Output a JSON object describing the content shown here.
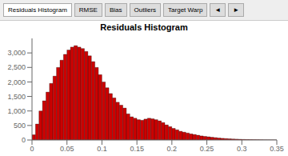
{
  "chart_data": {
    "type": "histogram",
    "title": "Residuals Histogram",
    "annotations": [
      "Residuals Histogram",
      "RMSE",
      "Bias",
      "Outliers",
      "Target Warp",
      "◄",
      "►"
    ],
    "bins": [
      0,
      0.005,
      0.01,
      0.015,
      0.02,
      0.025,
      0.03,
      0.035,
      0.04,
      0.045,
      0.05,
      0.055,
      0.06,
      0.065,
      0.07,
      0.075,
      0.08,
      0.085,
      0.09,
      0.095,
      0.1,
      0.105,
      0.11,
      0.115,
      0.12,
      0.125,
      0.13,
      0.135,
      0.14,
      0.145,
      0.15,
      0.155,
      0.16,
      0.165,
      0.17,
      0.175,
      0.18,
      0.185,
      0.19,
      0.195,
      0.2,
      0.205,
      0.21,
      0.215,
      0.22,
      0.225,
      0.23,
      0.235,
      0.24,
      0.245,
      0.25,
      0.255,
      0.26,
      0.265,
      0.27,
      0.275,
      0.28,
      0.285,
      0.29,
      0.295,
      0.3,
      0.305,
      0.31,
      0.315,
      0.32,
      0.325,
      0.33,
      0.335,
      0.34,
      0.345,
      0.35
    ],
    "values": [
      180,
      550,
      1000,
      1350,
      1650,
      1950,
      2200,
      2500,
      2750,
      2950,
      3100,
      3200,
      3250,
      3200,
      3150,
      3050,
      2900,
      2700,
      2500,
      2250,
      2000,
      1800,
      1600,
      1450,
      1300,
      1200,
      1100,
      900,
      800,
      750,
      700,
      680,
      720,
      750,
      730,
      700,
      660,
      600,
      520,
      460,
      400,
      350,
      300,
      270,
      240,
      210,
      190,
      165,
      140,
      125,
      110,
      95,
      82,
      68,
      58,
      50,
      42,
      35,
      30,
      25,
      20,
      17,
      14,
      12,
      10,
      8,
      6,
      5,
      4,
      3
    ],
    "color": "#cc0000",
    "xlim": [
      0,
      0.35
    ],
    "ylim": [
      0,
      3500
    ],
    "xticks": [
      0,
      0.05,
      0.1,
      0.15,
      0.2,
      0.25,
      0.3,
      0.35
    ],
    "yticks": [
      0,
      500,
      {
        "value": 1000,
        "label": "1,000"
      },
      {
        "value": 1500,
        "label": "1,500"
      },
      {
        "value": 2000,
        "label": "2,000"
      },
      {
        "value": 2500,
        "label": "2,500"
      },
      {
        "value": 3000,
        "label": "3,000"
      }
    ],
    "grid": false
  }
}
